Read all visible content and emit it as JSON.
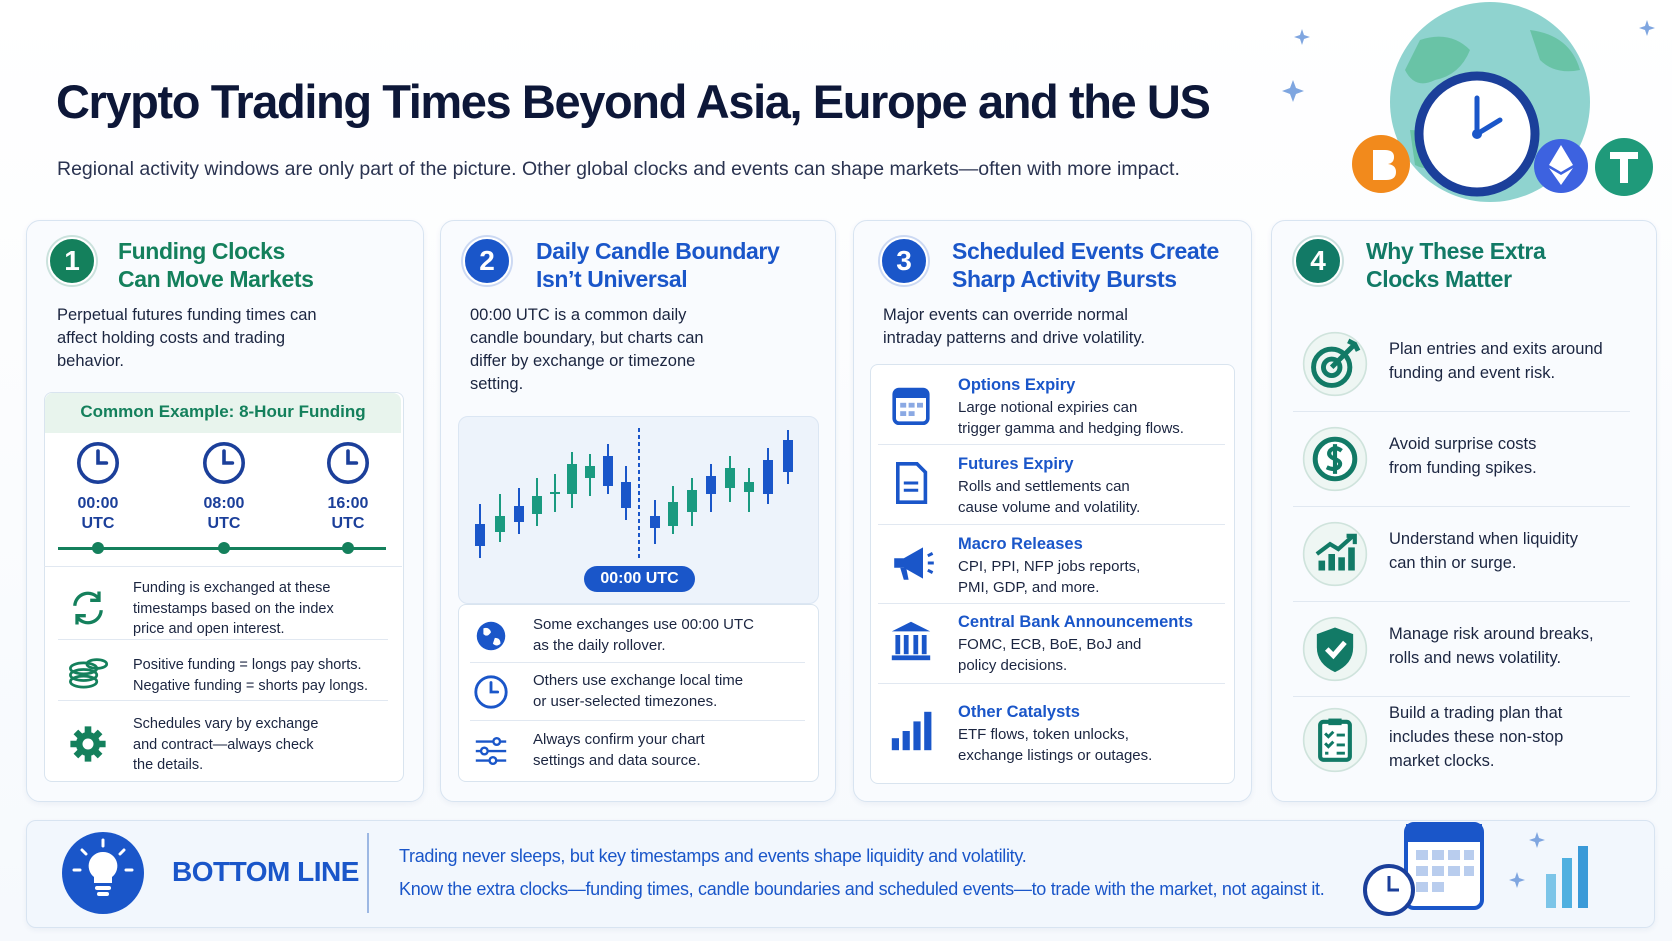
{
  "header": {
    "title": "Crypto Trading Times Beyond Asia, Europe and the US",
    "subtitle": "Regional activity windows are only part of the picture. Other global clocks and events can shape markets—often with more impact."
  },
  "cards": [
    {
      "number": "1",
      "title": [
        "Funding Clocks",
        "Can Move Markets"
      ],
      "intro": [
        "Perpetual futures funding times can",
        "affect holding costs and trading",
        "behavior."
      ],
      "example": {
        "title": "Common Example: 8-Hour Funding",
        "times": [
          [
            "00:00",
            "UTC"
          ],
          [
            "08:00",
            "UTC"
          ],
          [
            "16:00",
            "UTC"
          ]
        ]
      },
      "notes": [
        [
          "Funding is exchanged at these",
          "timestamps based on the index",
          "price and open interest."
        ],
        [
          "Positive funding = longs pay shorts.",
          "Negative funding = shorts pay longs."
        ],
        [
          "Schedules vary by exchange",
          "and contract—always check",
          "the details."
        ]
      ]
    },
    {
      "number": "2",
      "title": [
        "Daily Candle Boundary",
        "Isn’t Universal"
      ],
      "intro": [
        "00:00 UTC is a common daily",
        "candle boundary, but charts can",
        "differ by exchange or timezone",
        "setting."
      ],
      "chart_label": "00:00 UTC",
      "notes": [
        [
          "Some exchanges use 00:00 UTC",
          "as the daily rollover."
        ],
        [
          "Others use exchange local time",
          "or user-selected timezones."
        ],
        [
          "Always confirm your chart",
          "settings and data source."
        ]
      ]
    },
    {
      "number": "3",
      "title": [
        "Scheduled Events Create",
        "Sharp Activity Bursts"
      ],
      "intro": [
        "Major events can override normal",
        "intraday patterns and drive volatility."
      ],
      "events": [
        {
          "title": "Options Expiry",
          "text": [
            "Large notional expiries can",
            "trigger gamma and hedging flows."
          ]
        },
        {
          "title": "Futures Expiry",
          "text": [
            "Rolls and settlements can",
            "cause volume and volatility."
          ]
        },
        {
          "title": "Macro Releases",
          "text": [
            "CPI, PPI, NFP jobs reports,",
            "PMI, GDP, and more."
          ]
        },
        {
          "title": "Central Bank Announcements",
          "text": [
            "FOMC, ECB, BoE, BoJ and",
            "policy decisions."
          ]
        },
        {
          "title": "Other Catalysts",
          "text": [
            "ETF flows, token unlocks,",
            "exchange listings or outages."
          ]
        }
      ]
    },
    {
      "number": "4",
      "title": [
        "Why These Extra",
        "Clocks Matter"
      ],
      "items": [
        [
          "Plan entries and exits around",
          "funding and event risk."
        ],
        [
          "Avoid surprise costs",
          "from funding spikes."
        ],
        [
          "Understand when liquidity",
          "can thin or surge."
        ],
        [
          "Manage risk around breaks,",
          "rolls and news volatility."
        ],
        [
          "Build a trading plan that",
          "includes these non-stop",
          "market clocks."
        ]
      ]
    }
  ],
  "bottom": {
    "label": "BOTTOM LINE",
    "lines": [
      "Trading never sleeps, but key timestamps and events shape liquidity and volatility.",
      "Know the extra clocks—funding times, candle boundaries and scheduled events—to trade with the market, not against it."
    ]
  }
}
